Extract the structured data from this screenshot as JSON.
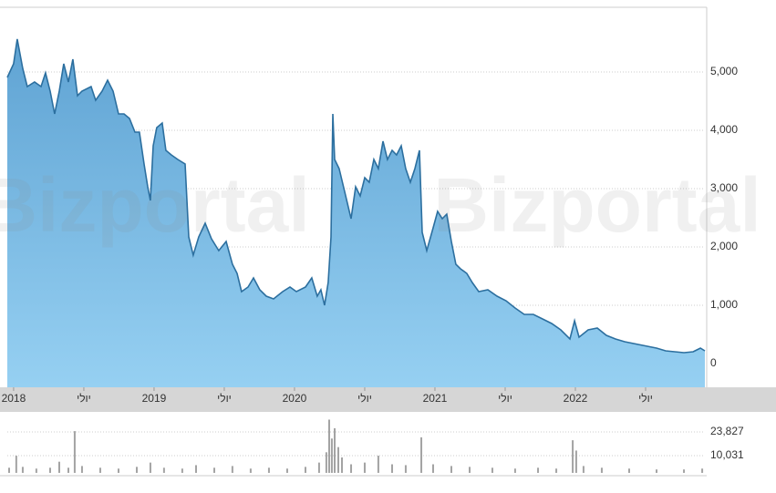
{
  "chart_data": [
    {
      "type": "area",
      "watermark": "Bizportal",
      "color": "#2c6f9f",
      "fill": "#8ecbef",
      "grid": true,
      "xlim": [
        2017.955,
        2022.922
      ],
      "ylim": [
        -406,
        6109
      ],
      "xticks": [
        {
          "value": 2018,
          "label": "2018"
        },
        {
          "value": 2018.5,
          "label": "יולי"
        },
        {
          "value": 2019,
          "label": "2019"
        },
        {
          "value": 2019.5,
          "label": "יולי"
        },
        {
          "value": 2020,
          "label": "2020"
        },
        {
          "value": 2020.5,
          "label": "יולי"
        },
        {
          "value": 2021,
          "label": "2021"
        },
        {
          "value": 2021.5,
          "label": "יולי"
        },
        {
          "value": 2022,
          "label": "2022"
        },
        {
          "value": 2022.5,
          "label": "יולי"
        }
      ],
      "yticks": [
        0,
        {
          "value": 1000,
          "label": "1,000"
        },
        {
          "value": 2000,
          "label": "2,000"
        },
        {
          "value": 3000,
          "label": "3,000"
        },
        {
          "value": 4000,
          "label": "4,000"
        },
        {
          "value": 5000,
          "label": "5,000"
        }
      ],
      "x": [
        2017.955,
        2018.0,
        2018.026,
        2018.065,
        2018.097,
        2018.149,
        2018.195,
        2018.227,
        2018.26,
        2018.292,
        2018.325,
        2018.357,
        2018.39,
        2018.422,
        2018.455,
        2018.487,
        2018.552,
        2018.584,
        2018.63,
        2018.669,
        2018.708,
        2018.747,
        2018.786,
        2018.825,
        2018.864,
        2018.896,
        2018.929,
        2018.955,
        2018.974,
        2018.994,
        2019.019,
        2019.058,
        2019.084,
        2019.123,
        2019.169,
        2019.221,
        2019.247,
        2019.279,
        2019.318,
        2019.364,
        2019.409,
        2019.461,
        2019.513,
        2019.558,
        2019.591,
        2019.623,
        2019.669,
        2019.708,
        2019.753,
        2019.799,
        2019.851,
        2019.916,
        2019.968,
        2020.013,
        2020.078,
        2020.123,
        2020.162,
        2020.188,
        2020.214,
        2020.24,
        2020.26,
        2020.273,
        2020.286,
        2020.318,
        2020.357,
        2020.403,
        2020.435,
        2020.468,
        2020.5,
        2020.532,
        2020.565,
        2020.597,
        2020.63,
        2020.662,
        2020.695,
        2020.727,
        2020.76,
        2020.792,
        2020.825,
        2020.857,
        2020.89,
        2020.909,
        2020.942,
        2020.987,
        2021.019,
        2021.052,
        2021.084,
        2021.117,
        2021.149,
        2021.182,
        2021.227,
        2021.266,
        2021.312,
        2021.377,
        2021.442,
        2021.506,
        2021.571,
        2021.636,
        2021.701,
        2021.766,
        2021.831,
        2021.896,
        2021.961,
        2021.994,
        2022.026,
        2022.091,
        2022.156,
        2022.221,
        2022.286,
        2022.351,
        2022.448,
        2022.513,
        2022.578,
        2022.643,
        2022.708,
        2022.773,
        2022.838,
        2022.89,
        2022.922
      ],
      "values": [
        4906,
        5141,
        5563,
        5063,
        4750,
        4828,
        4750,
        4984,
        4672,
        4281,
        4672,
        5141,
        4828,
        5219,
        4594,
        4672,
        4750,
        4516,
        4672,
        4859,
        4672,
        4281,
        4281,
        4203,
        3969,
        3969,
        3422,
        3031,
        2797,
        3734,
        4047,
        4125,
        3656,
        3578,
        3500,
        3422,
        2172,
        1859,
        2172,
        2406,
        2141,
        1938,
        2094,
        1703,
        1547,
        1234,
        1313,
        1469,
        1266,
        1156,
        1109,
        1234,
        1313,
        1234,
        1313,
        1469,
        1156,
        1266,
        1000,
        1391,
        2172,
        4281,
        3500,
        3344,
        2953,
        2484,
        3031,
        2875,
        3188,
        3109,
        3500,
        3344,
        3813,
        3500,
        3656,
        3578,
        3734,
        3344,
        3109,
        3344,
        3656,
        2250,
        1938,
        2328,
        2609,
        2484,
        2563,
        2094,
        1703,
        1625,
        1547,
        1391,
        1234,
        1266,
        1156,
        1078,
        953,
        844,
        844,
        766,
        688,
        578,
        422,
        734,
        453,
        578,
        609,
        484,
        422,
        375,
        328,
        297,
        266,
        219,
        203,
        188,
        203,
        266,
        219
      ]
    },
    {
      "type": "bar",
      "color": "#a3a3a3",
      "grid": true,
      "xlim": [
        2017.955,
        2022.922
      ],
      "ylim": [
        -1100,
        35500
      ],
      "yticks": [
        {
          "value": 10031,
          "label": "10,031"
        },
        {
          "value": 23827,
          "label": "23,827"
        }
      ],
      "x": [
        2017.968,
        2018.019,
        2018.065,
        2018.162,
        2018.26,
        2018.325,
        2018.39,
        2018.435,
        2018.487,
        2018.617,
        2018.747,
        2018.877,
        2018.974,
        2019.071,
        2019.201,
        2019.299,
        2019.429,
        2019.558,
        2019.688,
        2019.818,
        2019.948,
        2020.078,
        2020.175,
        2020.227,
        2020.247,
        2020.266,
        2020.286,
        2020.312,
        2020.338,
        2020.403,
        2020.5,
        2020.597,
        2020.695,
        2020.792,
        2020.903,
        2020.987,
        2021.117,
        2021.247,
        2021.409,
        2021.571,
        2021.734,
        2021.864,
        2021.981,
        2022.006,
        2022.058,
        2022.188,
        2022.383,
        2022.578,
        2022.773,
        2022.903
      ],
      "values": [
        3000,
        10000,
        3500,
        2500,
        3000,
        6500,
        3000,
        24300,
        4000,
        3000,
        2500,
        3500,
        6000,
        3000,
        2500,
        4500,
        3000,
        4000,
        2500,
        3000,
        2500,
        3500,
        6000,
        12000,
        31000,
        20000,
        26000,
        15000,
        9000,
        5000,
        6000,
        10000,
        5000,
        4500,
        20700,
        5000,
        4000,
        3500,
        3000,
        2500,
        3000,
        2500,
        19000,
        13000,
        4000,
        3000,
        2500,
        2000,
        2000,
        2500
      ]
    }
  ]
}
